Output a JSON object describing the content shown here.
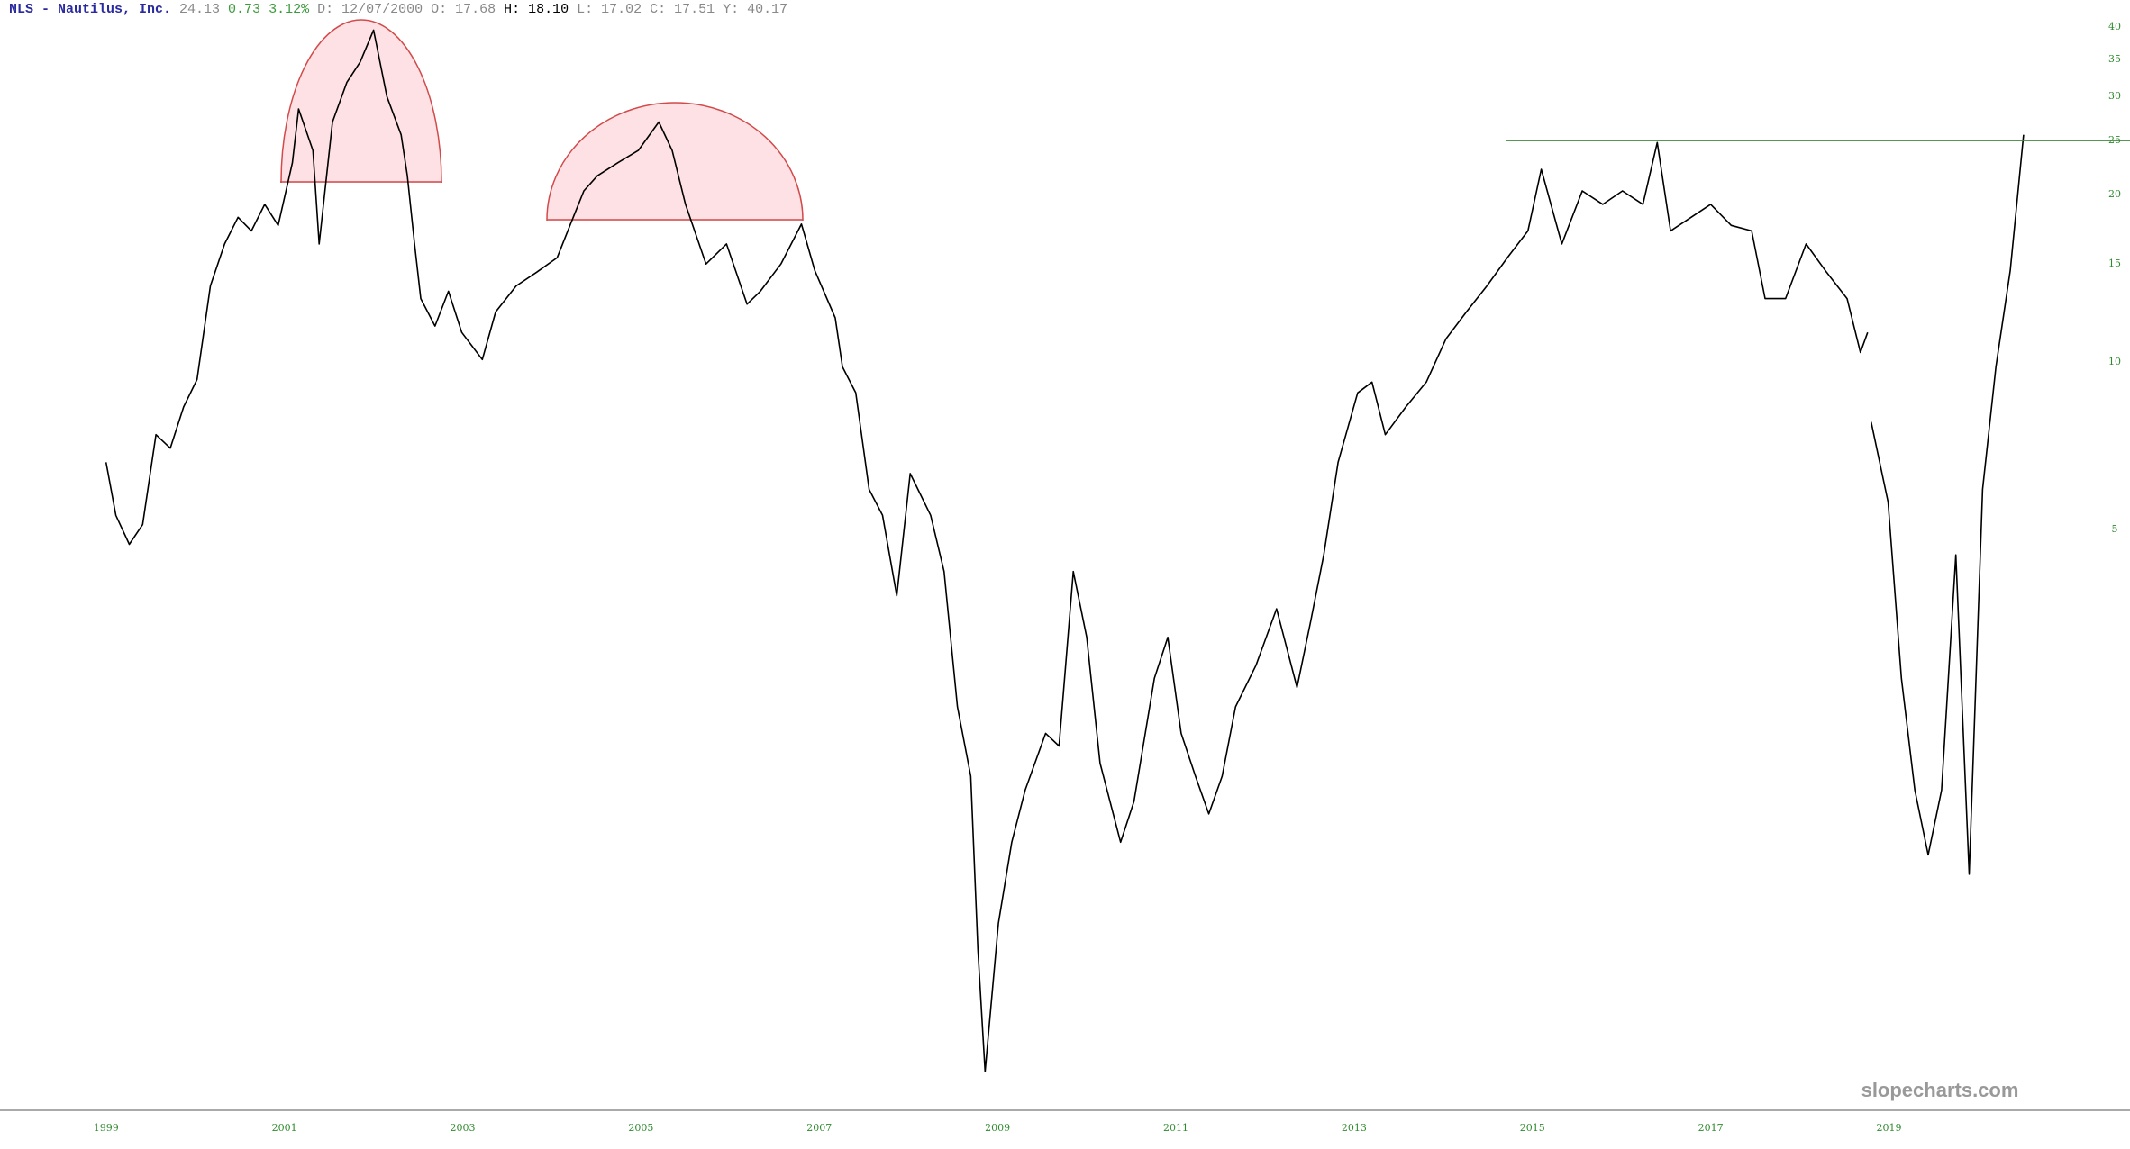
{
  "header": {
    "symbol": "NLS - Nautilus, Inc.",
    "last": "24.13",
    "change": "0.73",
    "change_pct": "3.12%",
    "date": "D: 12/07/2000",
    "open": "O: 17.68",
    "high": "H: 18.10",
    "low": "L: 17.02",
    "close": "C: 17.51",
    "year": "Y: 40.17"
  },
  "watermark": "slopecharts.com",
  "chart_data": {
    "type": "line",
    "log_scale": true,
    "color": "#000000",
    "x": [
      1999.0,
      1999.11,
      1999.26,
      1999.41,
      1999.56,
      1999.72,
      1999.87,
      2000.02,
      2000.17,
      2000.33,
      2000.48,
      2000.63,
      2000.78,
      2000.93,
      2001.09,
      2001.16,
      2001.32,
      2001.39,
      2001.54,
      2001.7,
      2001.85,
      2002.0,
      2002.15,
      2002.31,
      2002.38,
      2002.46,
      2002.53,
      2002.69,
      2002.84,
      2002.99,
      2003.22,
      2003.37,
      2003.6,
      2003.83,
      2004.06,
      2004.21,
      2004.36,
      2004.51,
      2004.74,
      2004.97,
      2005.2,
      2005.35,
      2005.5,
      2005.73,
      2005.96,
      2006.19,
      2006.34,
      2006.57,
      2006.8,
      2006.95,
      2007.18,
      2007.26,
      2007.41,
      2007.56,
      2007.71,
      2007.87,
      2008.02,
      2008.25,
      2008.4,
      2008.55,
      2008.7,
      2008.78,
      2008.86,
      2009.01,
      2009.16,
      2009.31,
      2009.54,
      2009.69,
      2009.85,
      2010.0,
      2010.15,
      2010.38,
      2010.53,
      2010.76,
      2010.91,
      2011.06,
      2011.22,
      2011.37,
      2011.52,
      2011.67,
      2011.9,
      2012.13,
      2012.36,
      2012.51,
      2012.66,
      2012.82,
      2013.04,
      2013.2,
      2013.35,
      2013.58,
      2013.81,
      2014.03,
      2014.26,
      2014.49,
      2014.72,
      2014.95,
      2015.1,
      2015.33,
      2015.56,
      2015.79,
      2016.01,
      2016.24,
      2016.4,
      2016.55,
      2016.78,
      2017.0,
      2017.23,
      2017.46,
      2017.61,
      2017.84,
      2018.07,
      2018.3,
      2018.53,
      2018.68,
      2018.76,
      2018.78,
      2018.8,
      2018.99,
      2019.14,
      2019.29,
      2019.44,
      2019.59,
      2019.75,
      2019.9,
      2020.05,
      2020.2,
      2020.36,
      2020.51
    ],
    "values": [
      6.6,
      5.3,
      4.7,
      5.1,
      7.4,
      7.0,
      8.3,
      9.3,
      13.7,
      16.3,
      18.2,
      17.2,
      19.2,
      17.6,
      22.8,
      28.5,
      24.0,
      16.3,
      27.0,
      31.8,
      34.6,
      39.5,
      30.0,
      25.6,
      21.6,
      16.3,
      13.0,
      11.6,
      13.4,
      11.3,
      10.1,
      12.3,
      13.7,
      14.5,
      15.4,
      17.7,
      20.3,
      21.6,
      22.8,
      24.0,
      27.0,
      24.0,
      19.2,
      15.0,
      16.3,
      12.7,
      13.4,
      15.0,
      17.7,
      14.6,
      12.0,
      9.8,
      8.8,
      5.9,
      5.3,
      3.8,
      6.3,
      5.3,
      4.2,
      2.4,
      1.8,
      0.88,
      0.53,
      0.98,
      1.37,
      1.7,
      2.15,
      2.04,
      4.2,
      3.2,
      1.9,
      1.37,
      1.62,
      2.7,
      3.2,
      2.15,
      1.8,
      1.54,
      1.8,
      2.4,
      2.85,
      3.6,
      2.6,
      3.4,
      4.5,
      6.6,
      8.8,
      9.2,
      7.4,
      8.3,
      9.2,
      11.0,
      12.3,
      13.7,
      15.4,
      17.2,
      22.2,
      16.3,
      20.3,
      19.2,
      20.3,
      19.2,
      24.8,
      17.2,
      18.2,
      19.2,
      17.6,
      17.2,
      13.0,
      13.0,
      16.3,
      14.5,
      13.0,
      10.4,
      11.3,
      null,
      7.8,
      5.6,
      2.7,
      1.7,
      1.3,
      1.7,
      4.5,
      1.2,
      5.9,
      9.8,
      14.6,
      25.6
    ],
    "xlim": [
      1997.81,
      2021.35
    ],
    "xticks": [
      1999,
      2001,
      2003,
      2005,
      2007,
      2009,
      2011,
      2013,
      2015,
      2017,
      2019
    ],
    "ylim": [
      0.45,
      43
    ],
    "yticks": [
      5,
      10,
      15,
      20,
      25,
      30,
      35,
      40
    ],
    "reference_line": {
      "value": 25,
      "x_start": 2014.7,
      "color": "#3c8a3c"
    }
  }
}
